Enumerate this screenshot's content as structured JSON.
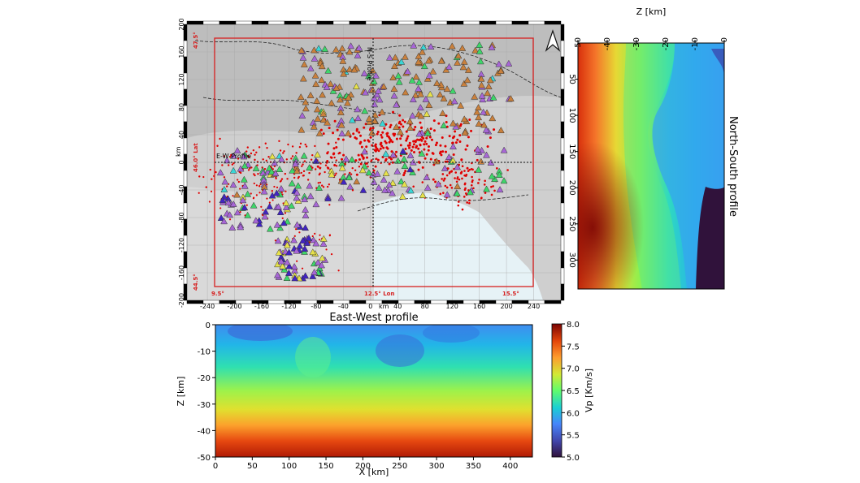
{
  "map": {
    "profile_ns_label": "N-S Profile",
    "profile_ew_label": "E-W Profile",
    "km_label": "km",
    "km_label_x": "km",
    "corner_labels": {
      "top_lat": "47.5°",
      "bottom_lat": "44.5°",
      "mid_lat": "46.0° Lat",
      "left_lon": "9.5°",
      "mid_lon": "12.5° Lon",
      "right_lon": "15.5°"
    },
    "x_ticks": [
      -240,
      -200,
      -160,
      -120,
      -80,
      -40,
      0,
      40,
      80,
      120,
      160,
      200,
      240
    ],
    "y_ticks": [
      200,
      160,
      120,
      80,
      40,
      0,
      -40,
      -80,
      -120,
      -160,
      -200
    ],
    "x_range": [
      -270,
      280
    ],
    "y_range": [
      -200,
      200
    ],
    "colors": {
      "land": "#cfcfcf",
      "sea": "#e6f2f6",
      "frame": "#d62020",
      "events": "#e00000"
    }
  },
  "ns_profile": {
    "title": "North-South profile",
    "xlabel": "Z [km]",
    "x_ticks": [
      -50,
      -40,
      -30,
      -20,
      -10,
      0
    ],
    "y_ticks": [
      50,
      100,
      150,
      200,
      250,
      300
    ],
    "x_range": [
      -50,
      0
    ],
    "y_range": [
      0,
      340
    ]
  },
  "ew_profile": {
    "title": "East-West profile",
    "xlabel": "X [km]",
    "ylabel": "Z [km]",
    "x_ticks": [
      0,
      50,
      100,
      150,
      200,
      250,
      300,
      350,
      400
    ],
    "y_ticks": [
      0,
      -10,
      -20,
      -30,
      -40,
      -50
    ],
    "x_range": [
      0,
      430
    ],
    "y_range": [
      -50,
      0
    ]
  },
  "colorbar": {
    "label": "Vp [Km/s]",
    "ticks": [
      "8.0",
      "7.5",
      "7.0",
      "6.5",
      "6.0",
      "5.5",
      "5.0"
    ],
    "range": [
      5.0,
      8.0
    ]
  },
  "chart_data": [
    {
      "type": "heatmap",
      "title": "East-West profile",
      "xlabel": "X [km]",
      "ylabel": "Z [km]",
      "xlim": [
        0,
        430
      ],
      "ylim": [
        -50,
        0
      ],
      "colorbar_label": "Vp [Km/s]",
      "colorbar_range": [
        5.0,
        8.0
      ],
      "depth_km": [
        0,
        -5,
        -10,
        -15,
        -20,
        -25,
        -30,
        -35,
        -40,
        -45,
        -50
      ],
      "velocity_vs_depth": [
        5.6,
        5.8,
        6.0,
        6.2,
        6.4,
        6.5,
        6.6,
        7.0,
        7.6,
        7.9,
        8.0
      ]
    },
    {
      "type": "heatmap",
      "title": "North-South profile",
      "xlabel": "Z [km]",
      "xlim": [
        -50,
        0
      ],
      "ylim": [
        0,
        340
      ],
      "colorbar_label": "Vp [Km/s]",
      "colorbar_range": [
        5.0,
        8.0
      ]
    }
  ]
}
